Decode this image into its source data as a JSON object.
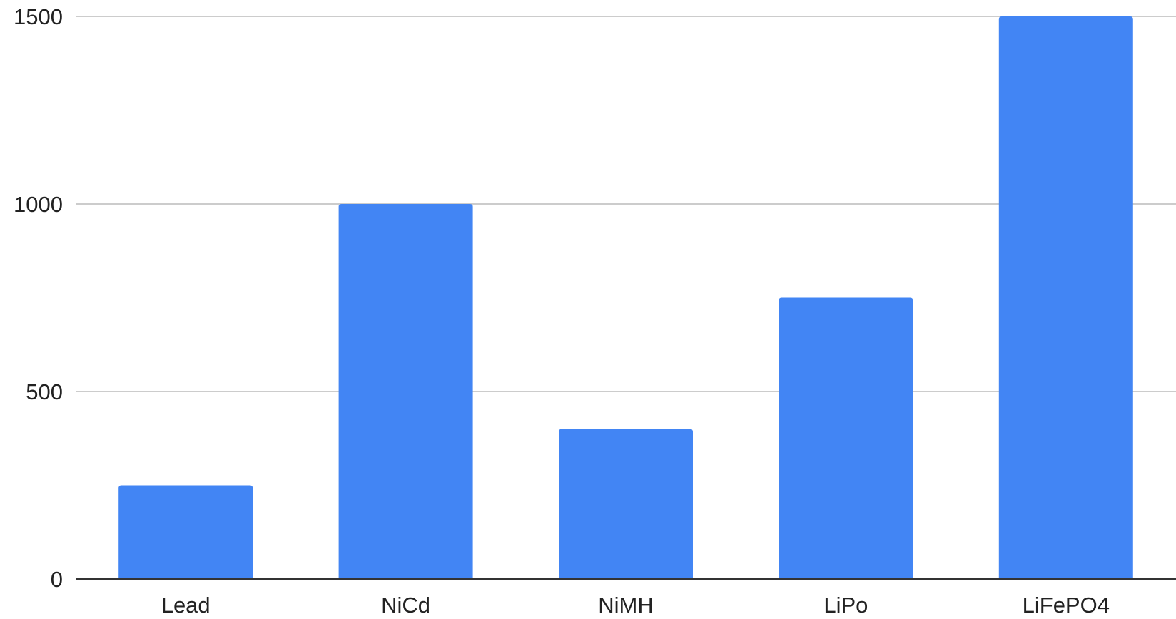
{
  "chart_data": {
    "type": "bar",
    "categories": [
      "Lead",
      "NiCd",
      "NiMH",
      "LiPo",
      "LiFePO4"
    ],
    "values": [
      250,
      1000,
      400,
      750,
      1500
    ],
    "title": "",
    "xlabel": "",
    "ylabel": "",
    "ylim": [
      0,
      1500
    ],
    "yticks": [
      0,
      500,
      1000,
      1500
    ],
    "grid": true,
    "legend": "none",
    "colors": {
      "bar": "#4285f4",
      "grid": "#cccccc",
      "axis": "#333333"
    }
  }
}
